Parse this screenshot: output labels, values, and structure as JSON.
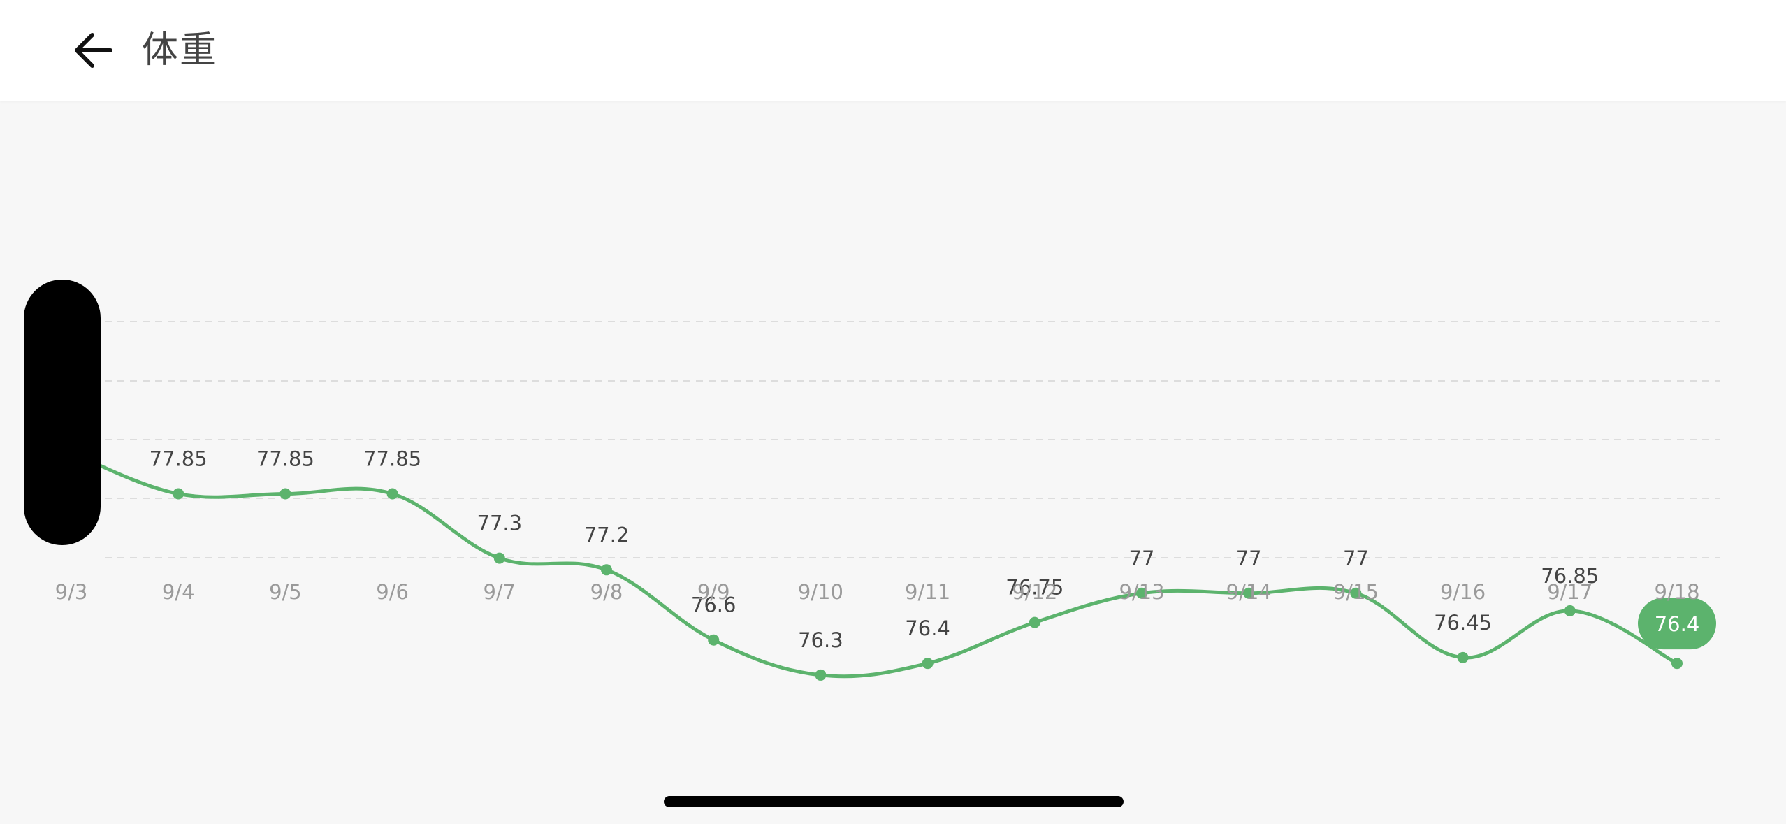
{
  "header": {
    "title": "体重",
    "back_icon": "arrow-left-icon"
  },
  "colors": {
    "line": "#5cb36d",
    "point": "#5cb36d",
    "badge_bg": "#5cb36d",
    "badge_text": "#ffffff",
    "grid": "#dddddd",
    "tick_label": "#9a9a9a",
    "value_label": "#444444",
    "background": "#f7f7f7"
  },
  "chart_data": {
    "type": "line",
    "categories": [
      "9/3",
      "9/4",
      "9/5",
      "9/6",
      "9/7",
      "9/8",
      "9/9",
      "9/10",
      "9/11",
      "9/12",
      "9/13",
      "9/14",
      "9/15",
      "9/16",
      "9/17",
      "9/18"
    ],
    "series": [
      {
        "values": [
          78.2,
          77.85,
          77.85,
          77.85,
          77.3,
          77.2,
          76.6,
          76.3,
          76.4,
          76.75,
          77,
          77,
          77,
          76.45,
          76.85,
          76.4
        ],
        "labels": [
          "",
          "77.85",
          "77.85",
          "77.85",
          "77.3",
          "77.2",
          "76.6",
          "76.3",
          "76.4",
          "76.75",
          "77",
          "77",
          "77",
          "76.45",
          "76.85",
          "76.4"
        ]
      }
    ],
    "highlighted": {
      "category": "9/18",
      "value": 76.4,
      "label": "76.4"
    },
    "ylim": [
      75.2,
      80.1
    ],
    "grid": true,
    "grid_style": "dashed",
    "title": "",
    "xlabel": "",
    "ylabel": ""
  }
}
